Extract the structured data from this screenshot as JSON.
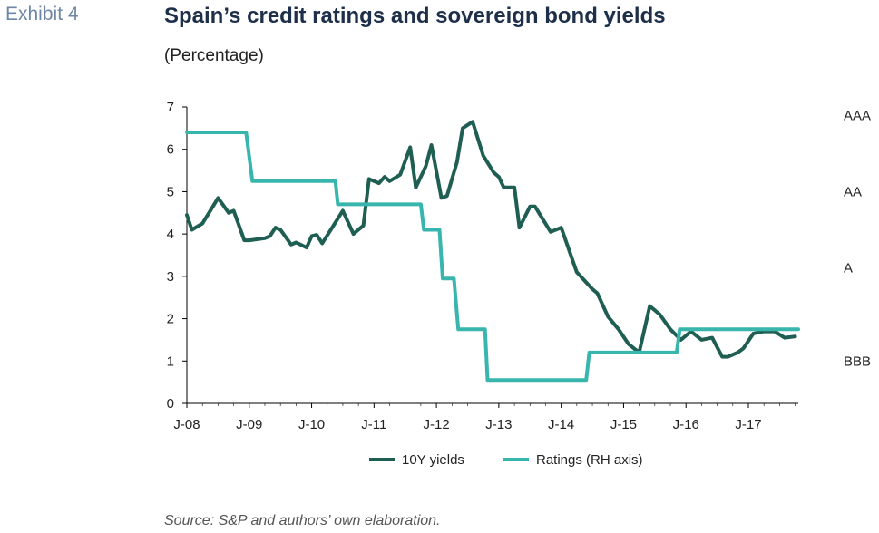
{
  "header": {
    "exhibit": "Exhibit 4",
    "title": "Spain’s credit ratings and sovereign bond yields",
    "subtitle": "(Percentage)"
  },
  "footer": {
    "source": "Source: S&P and authors’ own elaboration."
  },
  "colors": {
    "yields": "#1f5e52",
    "ratings": "#38b5ad",
    "axis": "#000000"
  },
  "chart_data": {
    "type": "line",
    "x_tick_labels": [
      "J-08",
      "J-09",
      "J-10",
      "J-11",
      "J-12",
      "J-13",
      "J-14",
      "J-15",
      "J-16",
      "J-17"
    ],
    "xlim": [
      2008.0,
      2017.8
    ],
    "ylim": [
      0,
      7
    ],
    "y_ticks": [
      0,
      1,
      2,
      3,
      4,
      5,
      6,
      7
    ],
    "right_axis_labels": [
      {
        "label": "AAA",
        "value": 6.8
      },
      {
        "label": "AA",
        "value": 5.0
      },
      {
        "label": "A",
        "value": 3.2
      },
      {
        "label": "BBB",
        "value": 1.0
      }
    ],
    "legend": [
      "10Y yields",
      "Ratings (RH axis)"
    ],
    "grid": false,
    "series": [
      {
        "name": "10Y yields",
        "points": [
          [
            2008.0,
            4.45
          ],
          [
            2008.08,
            4.1
          ],
          [
            2008.25,
            4.25
          ],
          [
            2008.5,
            4.85
          ],
          [
            2008.67,
            4.5
          ],
          [
            2008.75,
            4.55
          ],
          [
            2008.92,
            3.85
          ],
          [
            2009.0,
            3.85
          ],
          [
            2009.25,
            3.9
          ],
          [
            2009.33,
            3.95
          ],
          [
            2009.42,
            4.15
          ],
          [
            2009.5,
            4.1
          ],
          [
            2009.67,
            3.75
          ],
          [
            2009.75,
            3.8
          ],
          [
            2009.92,
            3.68
          ],
          [
            2010.0,
            3.95
          ],
          [
            2010.08,
            3.98
          ],
          [
            2010.17,
            3.78
          ],
          [
            2010.33,
            4.15
          ],
          [
            2010.5,
            4.55
          ],
          [
            2010.67,
            4.0
          ],
          [
            2010.83,
            4.2
          ],
          [
            2010.92,
            5.3
          ],
          [
            2011.0,
            5.25
          ],
          [
            2011.08,
            5.2
          ],
          [
            2011.17,
            5.35
          ],
          [
            2011.25,
            5.25
          ],
          [
            2011.42,
            5.4
          ],
          [
            2011.58,
            6.05
          ],
          [
            2011.67,
            5.1
          ],
          [
            2011.83,
            5.6
          ],
          [
            2011.92,
            6.1
          ],
          [
            2012.08,
            4.85
          ],
          [
            2012.17,
            4.9
          ],
          [
            2012.33,
            5.7
          ],
          [
            2012.42,
            6.5
          ],
          [
            2012.58,
            6.65
          ],
          [
            2012.75,
            5.85
          ],
          [
            2012.92,
            5.45
          ],
          [
            2013.0,
            5.35
          ],
          [
            2013.08,
            5.1
          ],
          [
            2013.25,
            5.1
          ],
          [
            2013.33,
            4.15
          ],
          [
            2013.5,
            4.65
          ],
          [
            2013.58,
            4.65
          ],
          [
            2013.83,
            4.05
          ],
          [
            2014.0,
            4.15
          ],
          [
            2014.25,
            3.1
          ],
          [
            2014.5,
            2.7
          ],
          [
            2014.58,
            2.6
          ],
          [
            2014.75,
            2.05
          ],
          [
            2014.92,
            1.75
          ],
          [
            2015.08,
            1.4
          ],
          [
            2015.25,
            1.2
          ],
          [
            2015.42,
            2.3
          ],
          [
            2015.58,
            2.1
          ],
          [
            2015.75,
            1.75
          ],
          [
            2015.92,
            1.5
          ],
          [
            2016.08,
            1.7
          ],
          [
            2016.25,
            1.5
          ],
          [
            2016.42,
            1.55
          ],
          [
            2016.58,
            1.1
          ],
          [
            2016.67,
            1.1
          ],
          [
            2016.83,
            1.2
          ],
          [
            2016.92,
            1.3
          ],
          [
            2017.08,
            1.65
          ],
          [
            2017.25,
            1.7
          ],
          [
            2017.42,
            1.7
          ],
          [
            2017.58,
            1.55
          ],
          [
            2017.75,
            1.58
          ]
        ]
      },
      {
        "name": "Ratings (RH axis)",
        "points": [
          [
            2008.0,
            6.4
          ],
          [
            2008.95,
            6.4
          ],
          [
            2009.05,
            5.25
          ],
          [
            2010.38,
            5.25
          ],
          [
            2010.42,
            4.7
          ],
          [
            2011.75,
            4.7
          ],
          [
            2011.8,
            4.1
          ],
          [
            2012.05,
            4.1
          ],
          [
            2012.1,
            2.95
          ],
          [
            2012.28,
            2.95
          ],
          [
            2012.35,
            1.75
          ],
          [
            2012.78,
            1.75
          ],
          [
            2012.82,
            0.55
          ],
          [
            2014.4,
            0.55
          ],
          [
            2014.45,
            1.2
          ],
          [
            2015.85,
            1.2
          ],
          [
            2015.9,
            1.75
          ],
          [
            2017.8,
            1.75
          ]
        ]
      }
    ]
  }
}
